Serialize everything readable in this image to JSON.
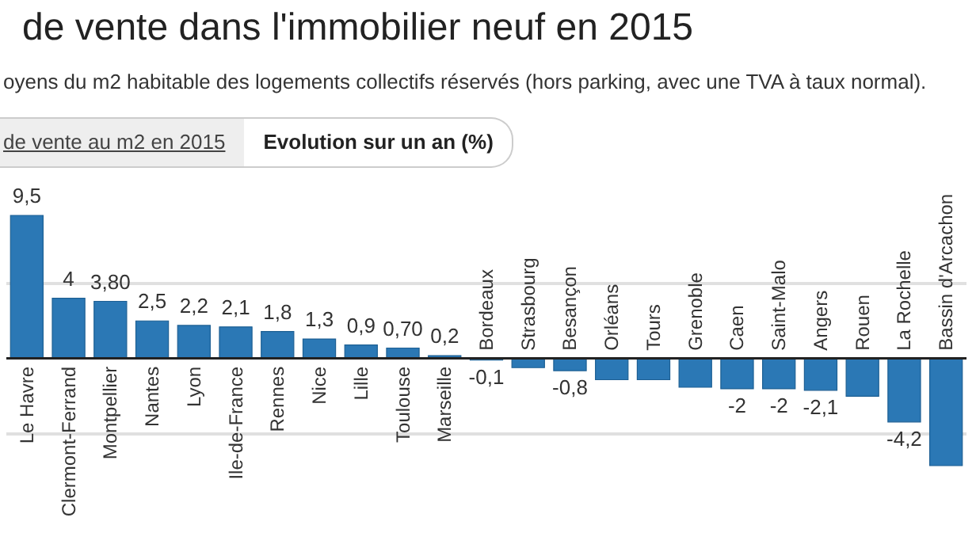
{
  "chart_data": {
    "type": "bar",
    "title": "de vente dans l'immobilier neuf en 2015",
    "subtitle": "oyens du m2 habitable des logements collectifs réservés (hors parking, avec une TVA à taux normal).",
    "annotations": [
      "de vente au m2 en 2015",
      "Evolution sur un an (%)"
    ],
    "categories": [
      "Le Havre",
      "Clermont-Ferrand",
      "Montpellier",
      "Nantes",
      "Lyon",
      "Ile-de-France",
      "Rennes",
      "Nice",
      "Lille",
      "Toulouse",
      "Marseille",
      "Bordeaux",
      "Strasbourg",
      "Besançon",
      "Orléans",
      "Tours",
      "Grenoble",
      "Caen",
      "Saint-Malo",
      "Angers",
      "Rouen",
      "La Rochelle",
      "Bassin d'Arcachon"
    ],
    "values": [
      9.5,
      4,
      3.8,
      2.5,
      2.2,
      2.1,
      1.8,
      1.3,
      0.9,
      0.7,
      0.2,
      -0.1,
      -0.6,
      -0.8,
      -1.4,
      -1.4,
      -1.9,
      -2,
      -2,
      -2.1,
      -2.5,
      -4.2,
      -7.1
    ],
    "value_labels": [
      "9,5",
      "4",
      "3,80",
      "2,5",
      "2,2",
      "2,1",
      "1,8",
      "1,3",
      "0,9",
      "0,70",
      "0,2",
      "-0,1",
      null,
      "-0,8",
      null,
      null,
      null,
      "-2",
      "-2",
      "-2,1",
      null,
      "-4,2",
      null
    ],
    "color": "#2b78b5",
    "ref_lines": [
      {
        "axis": "y",
        "value": 5,
        "label": null,
        "color": "#e0e0e0"
      },
      {
        "axis": "y",
        "value": -5,
        "label": null,
        "color": "#e0e0e0"
      }
    ]
  }
}
